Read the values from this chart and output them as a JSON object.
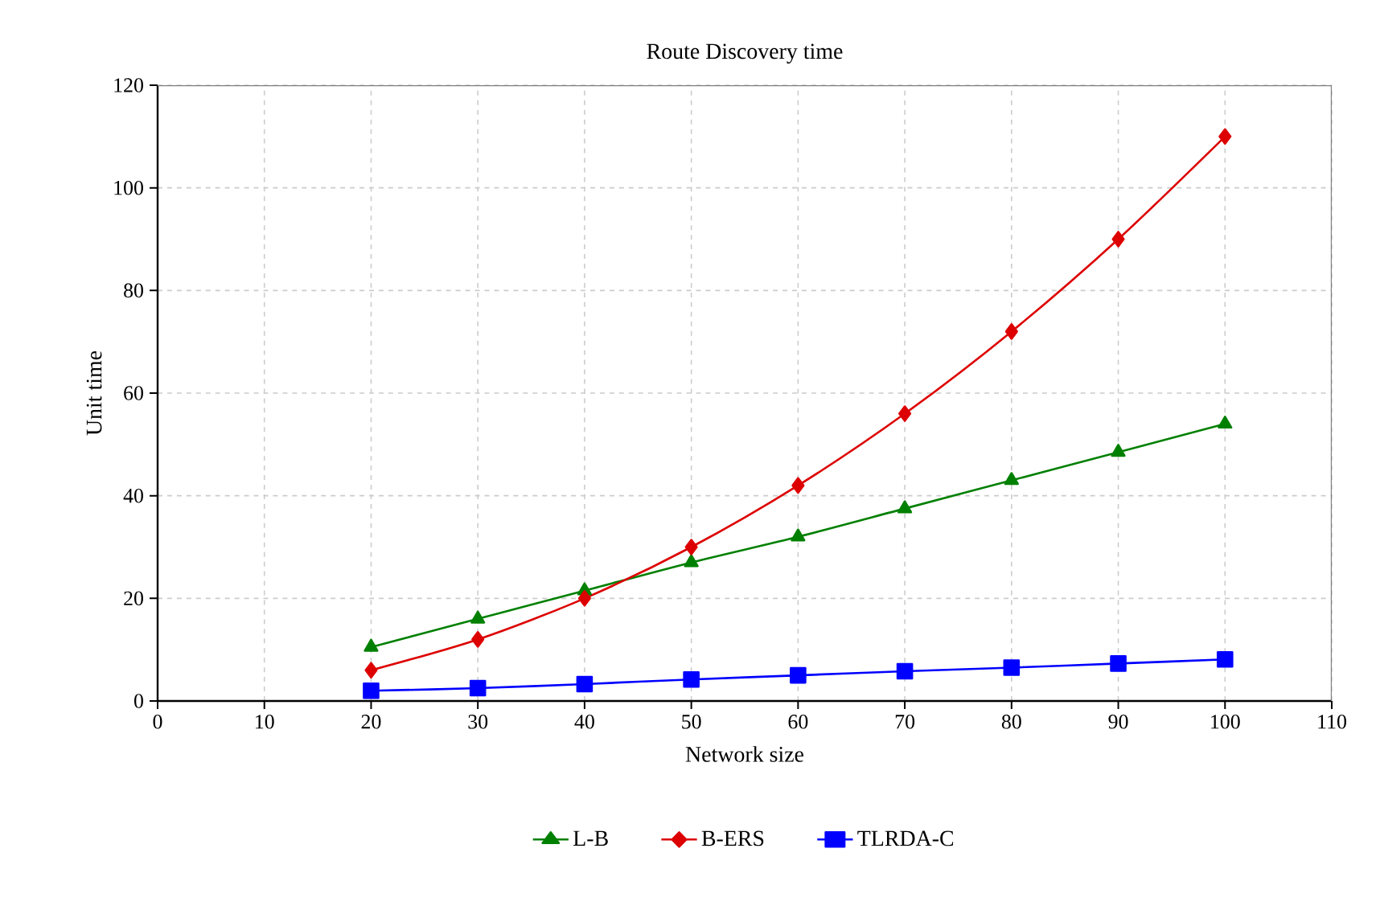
{
  "chart_data": {
    "type": "line",
    "title": "Route Discovery time",
    "xlabel": "Network size",
    "ylabel": "Unit time",
    "x": [
      20,
      30,
      40,
      50,
      60,
      70,
      80,
      90,
      100
    ],
    "series": [
      {
        "name": "L-B",
        "color": "#008000",
        "marker": "triangle",
        "values": [
          10.5,
          16,
          21.5,
          27,
          32,
          37.5,
          43,
          48.5,
          54
        ]
      },
      {
        "name": "B-ERS",
        "color": "#dd0000",
        "marker": "diamond",
        "values": [
          6,
          12,
          20,
          30,
          42,
          56,
          72,
          90,
          110
        ]
      },
      {
        "name": "TLRDA-C",
        "color": "#0000ff",
        "marker": "square",
        "values": [
          2,
          2.5,
          3.3,
          4.2,
          5,
          5.8,
          6.5,
          7.3,
          8.1
        ]
      }
    ],
    "xlim": [
      0,
      110
    ],
    "ylim": [
      0,
      120
    ],
    "xticks": [
      0,
      10,
      20,
      30,
      40,
      50,
      60,
      70,
      80,
      90,
      100,
      110
    ],
    "yticks": [
      0,
      20,
      40,
      60,
      80,
      100,
      120
    ],
    "grid": true,
    "legend": "bottom",
    "line_style": "solid"
  }
}
